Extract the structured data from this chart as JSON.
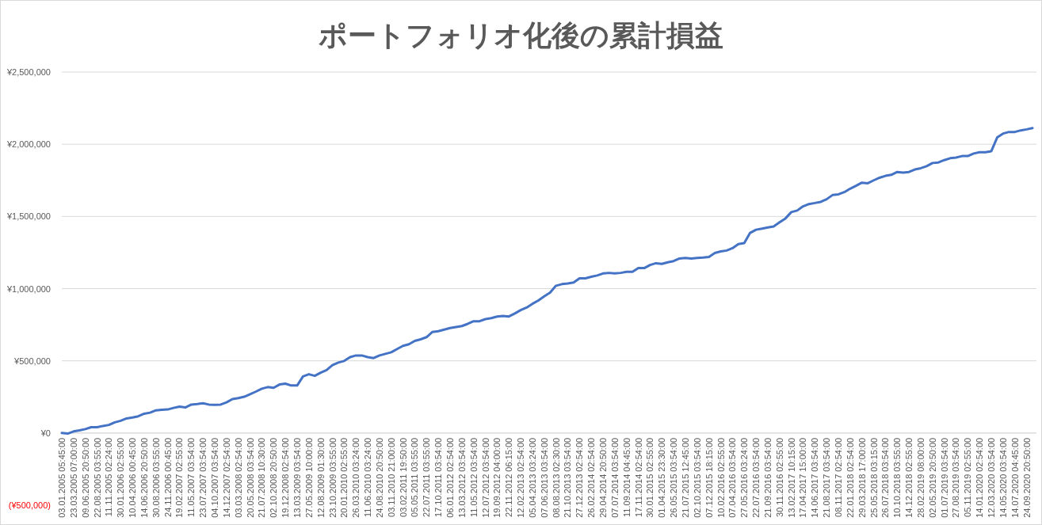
{
  "chart_data": {
    "type": "line",
    "title": "ポートフォリオ化後の累計損益",
    "categories": [
      "03.01.2005 05:45:00",
      null,
      "23.03.2005 07:00:00",
      null,
      "09.06.2005 20:50:00",
      null,
      "22.08.2005 03:55:00",
      null,
      "11.11.2005 02:24:00",
      null,
      "30.01.2006 02:55:00",
      null,
      "10.04.2006 00:45:00",
      null,
      "14.06.2006 20:50:00",
      null,
      "30.08.2006 03:55:00",
      null,
      "24.11.2006 00:45:00",
      null,
      "19.02.2007 02:55:00",
      null,
      "11.05.2007 03:54:00",
      null,
      "23.07.2007 03:54:00",
      null,
      "04.10.2007 03:54:00",
      null,
      "14.12.2007 02:54:00",
      null,
      "03.03.2008 02:54:00",
      null,
      "20.05.2008 03:54:00",
      null,
      "21.07.2008 10:30:00",
      null,
      "02.10.2008 20:50:00",
      null,
      "19.12.2008 02:54:00",
      null,
      "13.03.2009 03:54:00",
      null,
      "27.05.2009 10:00:00",
      null,
      "12.08.2009 01:30:00",
      null,
      "23.10.2009 03:55:00",
      null,
      "20.01.2010 02:55:00",
      null,
      "26.03.2010 03:24:00",
      null,
      "11.06.2010 03:24:00",
      null,
      "24.08.2010 20:50:00",
      null,
      "03.11.2010 21:00:00",
      null,
      "03.02.2011 19:50:00",
      null,
      "05.05.2011 03:55:00",
      null,
      "22.07.2011 03:55:00",
      null,
      "17.10.2011 03:54:00",
      null,
      "06.01.2012 02:54:00",
      null,
      "13.03.2012 03:54:00",
      null,
      "11.05.2012 03:54:00",
      null,
      "12.07.2012 03:54:00",
      null,
      "19.09.2012 04:00:00",
      null,
      "22.11.2012 06:15:00",
      null,
      "12.02.2013 02:54:00",
      null,
      "05.04.2013 03:24:00",
      null,
      "07.06.2013 03:54:00",
      null,
      "08.08.2013 02:30:00",
      null,
      "21.10.2013 03:54:00",
      null,
      "27.12.2013 02:54:00",
      null,
      "26.02.2014 02:54:00",
      null,
      "29.04.2014 20:50:00",
      null,
      "07.07.2014 03:54:00",
      null,
      "11.09.2014 04:45:00",
      null,
      "17.11.2014 02:54:00",
      null,
      "30.01.2015 02:55:00",
      null,
      "01.04.2015 23:30:00",
      null,
      "26.05.2015 03:54:00",
      null,
      "21.07.2015 12:45:00",
      null,
      "02.10.2015 03:54:00",
      null,
      "07.12.2015 18:15:00",
      null,
      "10.02.2016 02:55:00",
      null,
      "07.04.2016 03:54:00",
      null,
      "27.05.2016 03:24:00",
      null,
      "22.07.2016 03:54:00",
      null,
      "21.09.2016 03:54:00",
      null,
      "30.11.2016 02:55:00",
      null,
      "13.02.2017 10:15:00",
      null,
      "17.04.2017 15:00:00",
      null,
      "14.06.2017 03:54:00",
      null,
      "21.08.2017 03:54:00",
      null,
      "08.11.2017 02:54:00",
      null,
      "22.01.2018 02:54:00",
      null,
      "29.03.2018 17:00:00",
      null,
      "25.05.2018 03:15:00",
      null,
      "26.07.2018 03:54:00",
      null,
      "10.10.2018 03:55:00",
      null,
      "14.12.2018 02:55:00",
      null,
      "28.02.2019 08:00:00",
      null,
      "02.05.2019 20:50:00",
      null,
      "01.07.2019 03:54:00",
      null,
      "27.08.2019 03:54:00",
      null,
      "05.11.2019 02:55:00",
      null,
      "14.01.2020 02:54:00",
      null,
      "12.03.2020 03:54:00",
      null,
      "14.05.2020 03:54:00",
      null,
      "14.07.2020 04:45:00",
      null,
      "24.09.2020 20:50:00",
      null
    ],
    "series": [
      {
        "color": "#4472c4",
        "values": [
          0,
          -4000,
          11000,
          18000,
          27000,
          40000,
          40000,
          49000,
          56000,
          74000,
          85000,
          101000,
          107000,
          116000,
          134000,
          141000,
          157000,
          161000,
          163000,
          174000,
          183000,
          177000,
          197000,
          201000,
          206000,
          197000,
          195000,
          197000,
          212000,
          235000,
          242000,
          251000,
          269000,
          287000,
          307000,
          318000,
          313000,
          336000,
          342000,
          329000,
          329000,
          392000,
          407000,
          396000,
          418000,
          436000,
          470000,
          488000,
          499000,
          526000,
          537000,
          537000,
          526000,
          519000,
          537000,
          548000,
          559000,
          582000,
          604000,
          615000,
          638000,
          649000,
          664000,
          700000,
          705000,
          716000,
          727000,
          734000,
          741000,
          756000,
          774000,
          774000,
          789000,
          796000,
          807000,
          811000,
          807000,
          828000,
          851000,
          869000,
          895000,
          918000,
          947000,
          973000,
          1020000,
          1031000,
          1036000,
          1042000,
          1071000,
          1071000,
          1082000,
          1091000,
          1105000,
          1109000,
          1105000,
          1109000,
          1116000,
          1116000,
          1142000,
          1142000,
          1164000,
          1176000,
          1171000,
          1182000,
          1191000,
          1209000,
          1213000,
          1209000,
          1213000,
          1215000,
          1220000,
          1247000,
          1258000,
          1264000,
          1280000,
          1309000,
          1315000,
          1386000,
          1408000,
          1415000,
          1424000,
          1431000,
          1459000,
          1486000,
          1530000,
          1541000,
          1570000,
          1586000,
          1593000,
          1601000,
          1619000,
          1648000,
          1653000,
          1668000,
          1692000,
          1712000,
          1734000,
          1730000,
          1750000,
          1768000,
          1781000,
          1788000,
          1808000,
          1803000,
          1808000,
          1825000,
          1834000,
          1848000,
          1870000,
          1874000,
          1890000,
          1903000,
          1908000,
          1918000,
          1918000,
          1936000,
          1945000,
          1945000,
          1952000,
          2047000,
          2074000,
          2085000,
          2085000,
          2096000,
          2103000,
          2112000
        ]
      }
    ],
    "ylim": [
      -500000,
      2500000
    ],
    "yticks": [
      {
        "value": -500000,
        "label": "(¥500,000)"
      },
      {
        "value": 0,
        "label": "¥0"
      },
      {
        "value": 500000,
        "label": "¥500,000"
      },
      {
        "value": 1000000,
        "label": "¥1,000,000"
      },
      {
        "value": 1500000,
        "label": "¥1,500,000"
      },
      {
        "value": 2000000,
        "label": "¥2,000,000"
      },
      {
        "value": 2500000,
        "label": "¥2,500,000"
      }
    ],
    "grid": "y"
  }
}
